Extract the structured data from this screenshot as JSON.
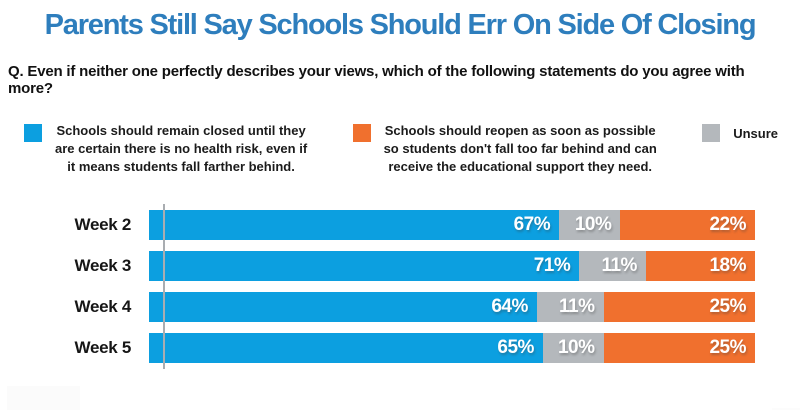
{
  "header": {
    "title": "Parents Still Say Schools Should Err On Side Of Closing",
    "question": "Q. Even if neither one perfectly describes your views, which of the following statements do you agree with more?"
  },
  "legend": {
    "items": [
      {
        "key": "closed",
        "color": "#0C9FE0",
        "label": "Schools should remain closed until they\nare certain there is no health risk, even if\nit means students fall farther behind."
      },
      {
        "key": "reopen",
        "color": "#F0702E",
        "label": "Schools should reopen as soon as possible\nso students don't fall too far behind and can\nreceive the educational support they need."
      },
      {
        "key": "unsure",
        "color": "#B4B8BC",
        "label": "Unsure"
      }
    ]
  },
  "chart_data": {
    "type": "bar",
    "orientation": "horizontal",
    "stacked": true,
    "title": "Parents Still Say Schools Should Err On Side Of Closing",
    "categories": [
      "Week 2",
      "Week 3",
      "Week 4",
      "Week 5"
    ],
    "series": [
      {
        "key": "closed",
        "name": "Schools should remain closed",
        "color": "#0C9FE0",
        "values": [
          67,
          71,
          64,
          65
        ]
      },
      {
        "key": "unsure",
        "name": "Unsure",
        "color": "#B4B8BC",
        "values": [
          10,
          11,
          11,
          10
        ]
      },
      {
        "key": "reopen",
        "name": "Schools should reopen",
        "color": "#F0702E",
        "values": [
          22,
          18,
          25,
          25
        ]
      }
    ],
    "value_suffix": "%",
    "xlim": [
      0,
      100
    ],
    "grid": false,
    "legend_position": "top",
    "value_labels": "inside-right"
  },
  "colors": {
    "title": "#2E7EBD",
    "axis": "#A9ADB1",
    "background": "#FFFFFF",
    "text": "#1A1A1A"
  }
}
